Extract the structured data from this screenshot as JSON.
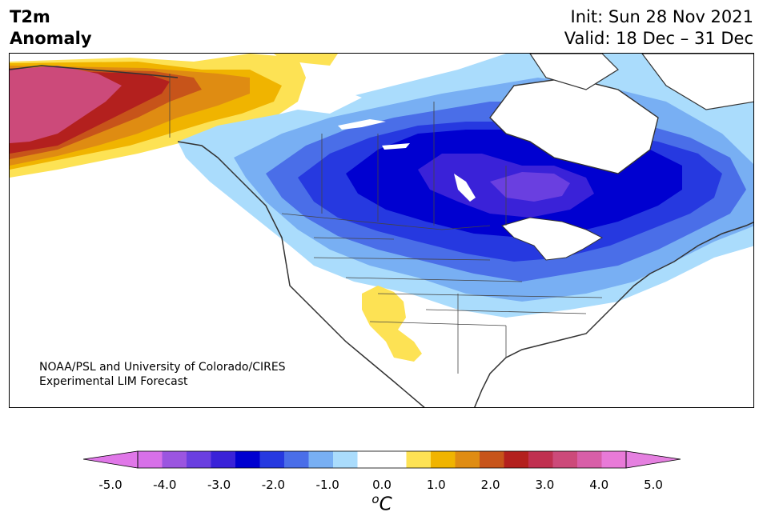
{
  "header": {
    "variable": "T2m",
    "subtitle": "Anomaly",
    "init": "Init: Sun 28 Nov 2021",
    "valid": "Valid: 18 Dec – 31 Dec"
  },
  "credit": {
    "line1": "NOAA/PSL and University of Colorado/CIRES",
    "line2": "Experimental LIM Forecast"
  },
  "colorbar": {
    "ticks": [
      "-5.0",
      "-4.0",
      "-3.0",
      "-2.0",
      "-1.0",
      "0.0",
      "1.0",
      "2.0",
      "3.0",
      "4.0",
      "5.0"
    ],
    "unit_super": "o",
    "unit": "C",
    "colors": [
      "#d770e8",
      "#9b55e0",
      "#6a3fe0",
      "#3a22d8",
      "#0000d0",
      "#2639e0",
      "#4a6ee8",
      "#78aff3",
      "#aadcfc",
      "#ffffff",
      "#ffffff",
      "#fde254",
      "#f0b400",
      "#df8c12",
      "#c7541a",
      "#b3201e",
      "#c03050",
      "#cc4a7a",
      "#d85ea8",
      "#e87ad8"
    ],
    "left_arrow_color": "#e077e8",
    "right_arrow_color": "#e580e0"
  },
  "map_colors": {
    "land": "#ffffff",
    "coast": "#333333",
    "anom_neg1": "#aadcfc",
    "anom_neg15": "#78aff3",
    "anom_neg2": "#4a6ee8",
    "anom_neg25": "#2639e0",
    "anom_neg3": "#0000d0",
    "anom_neg35": "#3a22d8",
    "anom_neg4": "#6a3fe0",
    "anom_pos1": "#fde254",
    "anom_pos15": "#f0b400",
    "anom_pos2": "#df8c12",
    "anom_pos25": "#c7541a",
    "anom_pos3": "#b3201e",
    "anom_pos4": "#cc4a7a"
  }
}
